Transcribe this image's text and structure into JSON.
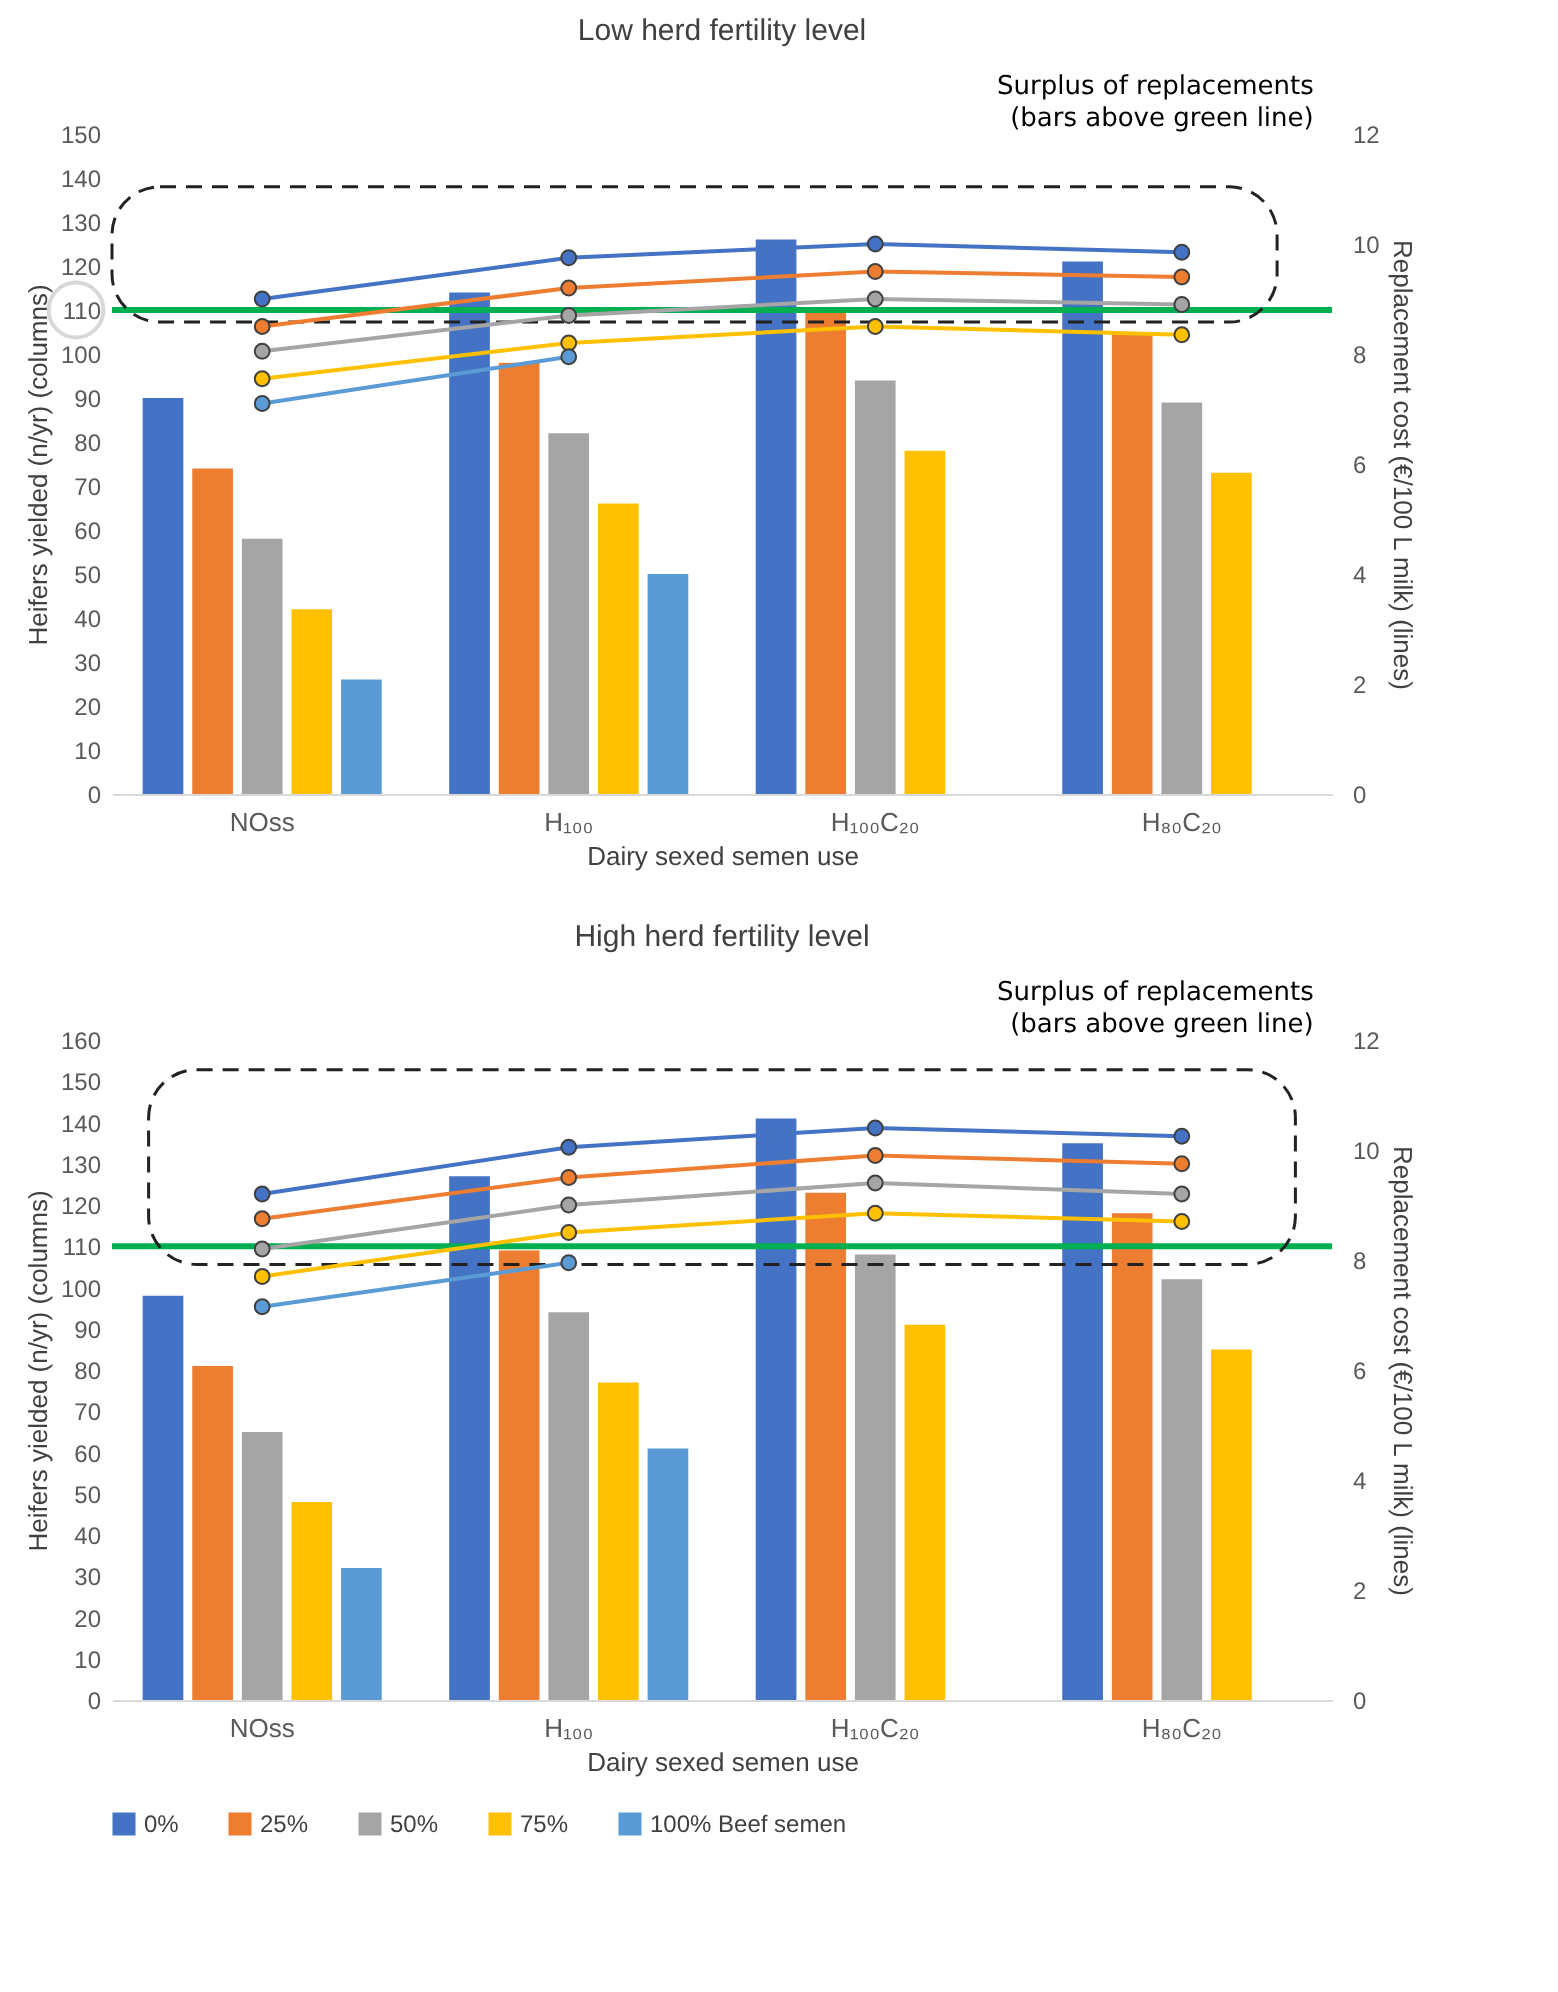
{
  "chart_data": [
    {
      "type": "bar",
      "title": "Low herd fertility level",
      "xlabel": "Dairy sexed semen use",
      "ylabel": "Heifers yielded (n/yr) (columns)",
      "y2label": "Replacement cost (€/100 L milk) (lines)",
      "annotations": [
        "Surplus of replacements",
        "(bars above green line)"
      ],
      "categories": [
        "NOss",
        "H₁₀₀",
        "H₁₀₀C₂₀",
        "H₈₀C₂₀"
      ],
      "ylim": [
        0,
        150
      ],
      "yticks": [
        0,
        10,
        20,
        30,
        40,
        50,
        60,
        70,
        80,
        90,
        100,
        110,
        120,
        130,
        140,
        150
      ],
      "y2lim": [
        0,
        12
      ],
      "y2ticks": [
        0,
        2,
        4,
        6,
        8,
        10,
        12
      ],
      "grid": false,
      "ref_lines": [
        {
          "axis": "y",
          "value": 110,
          "color": "#00b050"
        }
      ],
      "series": [
        {
          "color": "#4472c4",
          "values": [
            90,
            114,
            126,
            121
          ]
        },
        {
          "color": "#ed7d31",
          "values": [
            74,
            98,
            110,
            105
          ]
        },
        {
          "color": "#a5a5a5",
          "values": [
            58,
            82,
            94,
            89
          ]
        },
        {
          "color": "#ffc000",
          "values": [
            42,
            66,
            78,
            73
          ]
        },
        {
          "color": "#5b9bd5",
          "values": [
            26,
            50,
            null,
            null
          ]
        },
        {
          "type": "line",
          "axis": "y2",
          "marker": "circle",
          "line_style": "solid",
          "color": "#4472c4",
          "values": [
            9.0,
            9.75,
            10.0,
            9.85
          ]
        },
        {
          "type": "line",
          "axis": "y2",
          "marker": "circle",
          "line_style": "solid",
          "color": "#ed7d31",
          "values": [
            8.5,
            9.2,
            9.5,
            9.4
          ]
        },
        {
          "type": "line",
          "axis": "y2",
          "marker": "circle",
          "line_style": "solid",
          "color": "#a5a5a5",
          "values": [
            8.05,
            8.7,
            9.0,
            8.9
          ]
        },
        {
          "type": "line",
          "axis": "y2",
          "marker": "circle",
          "line_style": "solid",
          "color": "#ffc000",
          "values": [
            7.55,
            8.2,
            8.5,
            8.35
          ]
        },
        {
          "type": "line",
          "axis": "y2",
          "marker": "circle",
          "line_style": "solid",
          "color": "#5b9bd5",
          "values": [
            7.1,
            7.95,
            null,
            null
          ]
        }
      ]
    },
    {
      "type": "bar",
      "title": "High herd fertility level",
      "xlabel": "Dairy sexed semen use",
      "ylabel": "Heifers yielded (n/yr) (columns)",
      "y2label": "Replacement cost (€/100 L milk) (lines)",
      "annotations": [
        "Surplus of replacements",
        "(bars above green line)"
      ],
      "categories": [
        "NOss",
        "H₁₀₀",
        "H₁₀₀C₂₀",
        "H₈₀C₂₀"
      ],
      "ylim": [
        0,
        160
      ],
      "yticks": [
        0,
        10,
        20,
        30,
        40,
        50,
        60,
        70,
        80,
        90,
        100,
        110,
        120,
        130,
        140,
        150,
        160
      ],
      "y2lim": [
        0,
        12
      ],
      "y2ticks": [
        0,
        2,
        4,
        6,
        8,
        10,
        12
      ],
      "grid": false,
      "legend": "bottom",
      "ref_lines": [
        {
          "axis": "y",
          "value": 110,
          "color": "#00b050"
        }
      ],
      "series": [
        {
          "name": "0%",
          "color": "#4472c4",
          "values": [
            98,
            127,
            141,
            135
          ]
        },
        {
          "name": "25%",
          "color": "#ed7d31",
          "values": [
            81,
            109,
            123,
            118
          ]
        },
        {
          "name": "50%",
          "color": "#a5a5a5",
          "values": [
            65,
            94,
            108,
            102
          ]
        },
        {
          "name": "75%",
          "color": "#ffc000",
          "values": [
            48,
            77,
            91,
            85
          ]
        },
        {
          "name": "100% Beef semen",
          "color": "#5b9bd5",
          "values": [
            32,
            61,
            null,
            null
          ]
        },
        {
          "type": "line",
          "axis": "y2",
          "marker": "circle",
          "line_style": "solid",
          "color": "#4472c4",
          "values": [
            9.2,
            10.05,
            10.4,
            10.25
          ]
        },
        {
          "type": "line",
          "axis": "y2",
          "marker": "circle",
          "line_style": "solid",
          "color": "#ed7d31",
          "values": [
            8.75,
            9.5,
            9.9,
            9.75
          ]
        },
        {
          "type": "line",
          "axis": "y2",
          "marker": "circle",
          "line_style": "solid",
          "color": "#a5a5a5",
          "values": [
            8.2,
            9.0,
            9.4,
            9.2
          ]
        },
        {
          "type": "line",
          "axis": "y2",
          "marker": "circle",
          "line_style": "solid",
          "color": "#ffc000",
          "values": [
            7.7,
            8.5,
            8.85,
            8.7
          ]
        },
        {
          "type": "line",
          "axis": "y2",
          "marker": "circle",
          "line_style": "solid",
          "color": "#5b9bd5",
          "values": [
            7.15,
            7.95,
            null,
            null
          ]
        }
      ]
    }
  ]
}
